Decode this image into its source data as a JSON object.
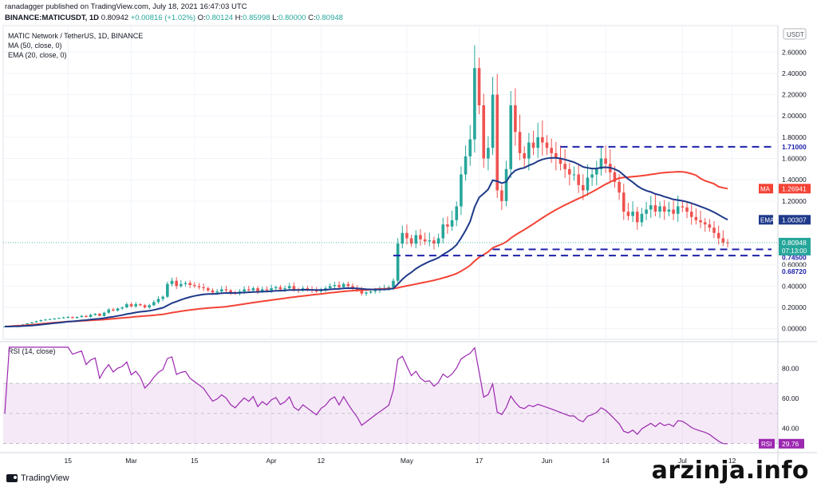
{
  "header": {
    "publisher_line": "ranadagger published on TradingView.com, July 18, 2021 16:47:03 UTC",
    "symbol": "BINANCE:MATICUSDT, 1D",
    "last": "0.80942",
    "change": "+0.00816 (+1.02%)",
    "o_label": "O:",
    "o": "0.80124",
    "h_label": "H:",
    "h": "0.85998",
    "l_label": "L:",
    "l": "0.80000",
    "c_label": "C:",
    "c": "0.80948"
  },
  "chart_data": {
    "type": "candlestick",
    "title": "MATIC Network / TetherUS, 1D, BINANCE",
    "indicators": [
      "MA (50, close, 0)",
      "EMA (20, close, 0)"
    ],
    "currency_label": "USDT",
    "price_ylim": [
      -0.1,
      2.85
    ],
    "price_ticks": [
      2.6,
      2.4,
      2.2,
      2.0,
      1.8,
      1.6,
      1.4,
      1.2,
      0.6,
      0.4,
      0.2,
      0.0
    ],
    "price_tick_labels": [
      "2.60000",
      "2.40000",
      "2.20000",
      "2.00000",
      "1.80000",
      "1.60000",
      "1.40000",
      "1.20000",
      "0.60000",
      "0.40000",
      "0.20000",
      "0.00000"
    ],
    "x_tick_labels": [
      {
        "label": "15",
        "day": 14
      },
      {
        "label": "Mar",
        "day": 28
      },
      {
        "label": "15",
        "day": 42
      },
      {
        "label": "Apr",
        "day": 59
      },
      {
        "label": "12",
        "day": 70
      },
      {
        "label": "May",
        "day": 89
      },
      {
        "label": "17",
        "day": 105
      },
      {
        "label": "Jun",
        "day": 120
      },
      {
        "label": "14",
        "day": 133
      },
      {
        "label": "Jul",
        "day": 150
      },
      {
        "label": "12",
        "day": 161
      }
    ],
    "candles_daily_close": [
      0.02,
      0.025,
      0.03,
      0.035,
      0.04,
      0.05,
      0.06,
      0.07,
      0.08,
      0.085,
      0.09,
      0.095,
      0.1,
      0.105,
      0.11,
      0.1,
      0.11,
      0.12,
      0.11,
      0.13,
      0.14,
      0.12,
      0.15,
      0.18,
      0.17,
      0.19,
      0.2,
      0.23,
      0.21,
      0.23,
      0.22,
      0.2,
      0.22,
      0.25,
      0.28,
      0.3,
      0.42,
      0.45,
      0.4,
      0.42,
      0.43,
      0.41,
      0.4,
      0.39,
      0.38,
      0.36,
      0.34,
      0.35,
      0.37,
      0.36,
      0.34,
      0.33,
      0.35,
      0.37,
      0.36,
      0.38,
      0.35,
      0.37,
      0.36,
      0.38,
      0.39,
      0.37,
      0.38,
      0.4,
      0.37,
      0.36,
      0.38,
      0.37,
      0.36,
      0.35,
      0.37,
      0.38,
      0.4,
      0.41,
      0.39,
      0.42,
      0.4,
      0.38,
      0.36,
      0.33,
      0.34,
      0.35,
      0.36,
      0.37,
      0.38,
      0.39,
      0.45,
      0.8,
      0.9,
      0.85,
      0.8,
      0.88,
      0.84,
      0.82,
      0.83,
      0.8,
      0.85,
      0.98,
      0.96,
      1.02,
      1.15,
      1.45,
      1.62,
      1.78,
      2.45,
      2.1,
      1.6,
      1.7,
      2.2,
      1.3,
      1.2,
      1.5,
      2.1,
      1.85,
      1.65,
      1.6,
      1.75,
      1.7,
      1.8,
      1.75,
      1.7,
      1.65,
      1.6,
      1.55,
      1.5,
      1.45,
      1.45,
      1.35,
      1.3,
      1.42,
      1.45,
      1.5,
      1.6,
      1.55,
      1.47,
      1.38,
      1.28,
      1.1,
      1.06,
      1.1,
      1.0,
      1.08,
      1.12,
      1.16,
      1.1,
      1.15,
      1.1,
      1.12,
      1.08,
      1.15,
      1.14,
      1.1,
      1.05,
      1.02,
      1.0,
      0.98,
      0.95,
      0.9,
      0.85,
      0.81,
      0.809
    ],
    "series": [
      {
        "name": "MA",
        "label": "1.26941",
        "color": "#f44336"
      },
      {
        "name": "EMA",
        "label": "1.00307",
        "color": "#1f3a8a"
      }
    ],
    "price_label_current": "0.80948",
    "countdown": "07:13:00",
    "levels": [
      {
        "value": 1.71,
        "label": "1.71000"
      },
      {
        "value": 0.745,
        "label": "0.74500"
      },
      {
        "value": 0.6872,
        "label": "0.68720"
      }
    ],
    "rsi": {
      "title": "RSI (14, close)",
      "ylim": [
        25,
        95
      ],
      "ticks": [
        80,
        60,
        40
      ],
      "tick_labels": [
        "80.00",
        "60.00",
        "40.00"
      ],
      "band": [
        30,
        70
      ],
      "value_label": "29.76",
      "tag": "RSI",
      "color": "#9c27b0"
    }
  },
  "watermark": "arzinja.info",
  "footer": {
    "brand": "TradingView"
  }
}
